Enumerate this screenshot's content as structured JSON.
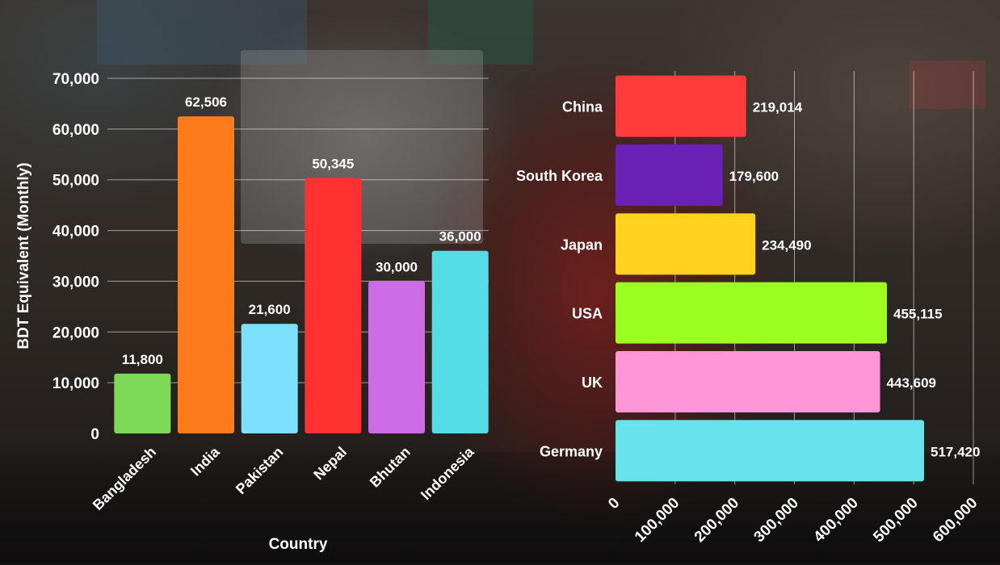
{
  "chart_data": [
    {
      "type": "bar",
      "title": "",
      "xlabel": "Country",
      "ylabel": "BDT Equivalent (Monthly)",
      "ylim": [
        0,
        70000
      ],
      "yticks": [
        "0",
        "10,000",
        "20,000",
        "30,000",
        "40,000",
        "50,000",
        "60,000",
        "70,000"
      ],
      "grid": true,
      "categories": [
        "Bangladesh",
        "India",
        "Pakistan",
        "Nepal",
        "Bhutan",
        "Indonesia"
      ],
      "values": [
        11800,
        62506,
        21600,
        50345,
        30000,
        36000
      ],
      "value_labels": [
        "11,800",
        "62,506",
        "21,600",
        "50,345",
        "30,000",
        "36,000"
      ],
      "colors": [
        "#7ed957",
        "#ff7a1a",
        "#7ee0ff",
        "#ff3131",
        "#cb6ce6",
        "#54dde6"
      ]
    },
    {
      "type": "bar",
      "orientation": "horizontal",
      "title": "",
      "xlabel": "",
      "ylabel": "",
      "xlim": [
        0,
        600000
      ],
      "xticks": [
        "0",
        "100,000",
        "200,000",
        "300,000",
        "400,000",
        "500,000",
        "600,000"
      ],
      "grid": true,
      "categories": [
        "China",
        "South Korea",
        "Japan",
        "USA",
        "UK",
        "Germany"
      ],
      "values": [
        219014,
        179600,
        234490,
        455115,
        443609,
        517420
      ],
      "value_labels": [
        "219,014",
        "179,600",
        "234,490",
        "455,115",
        "443,609",
        "517,420"
      ],
      "colors": [
        "#ff3b3b",
        "#6b21b5",
        "#ffd21f",
        "#9cff1f",
        "#ff96d8",
        "#68e2ec"
      ]
    }
  ]
}
